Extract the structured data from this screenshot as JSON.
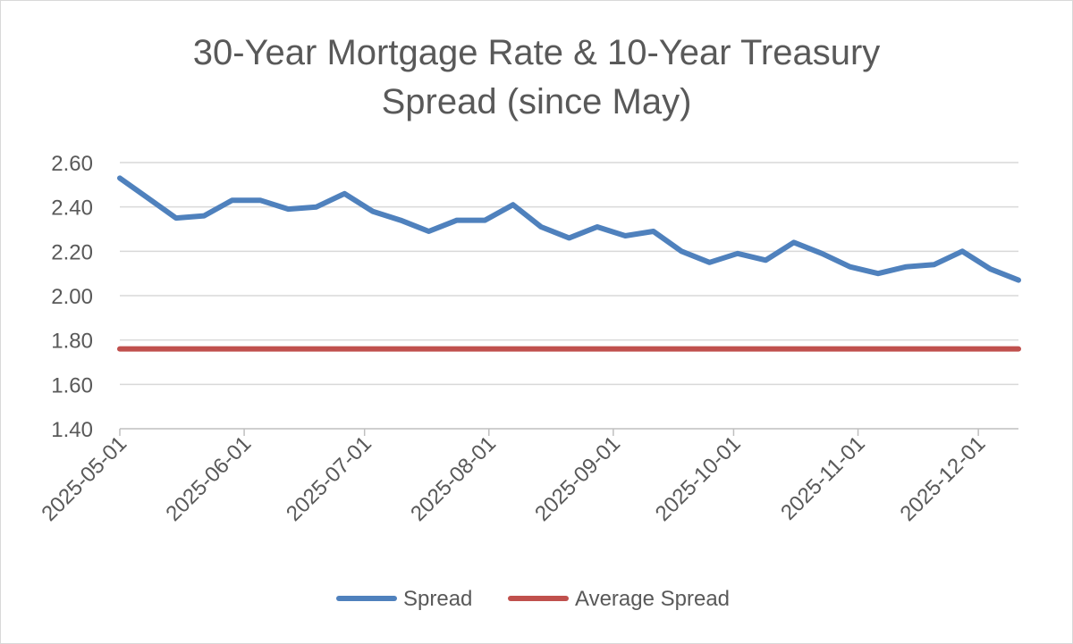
{
  "chart_data": {
    "type": "line",
    "title": "30-Year Mortgage Rate & 10-Year Treasury Spread (since May)",
    "title_lines": [
      "30-Year Mortgage Rate & 10-Year Treasury",
      "Spread (since May)"
    ],
    "xlabel": "",
    "ylabel": "",
    "ylim": [
      1.4,
      2.6
    ],
    "y_ticks": [
      "1.40",
      "1.60",
      "1.80",
      "2.00",
      "2.20",
      "2.40",
      "2.60"
    ],
    "x_ticks": [
      "2025-05-01",
      "2025-06-01",
      "2025-07-01",
      "2025-08-01",
      "2025-09-01",
      "2025-10-01",
      "2025-11-01",
      "2025-12-01"
    ],
    "grid": true,
    "legend_position": "bottom",
    "x": [
      "2025-05-01",
      "2025-05-08",
      "2025-05-15",
      "2025-05-22",
      "2025-05-29",
      "2025-06-05",
      "2025-06-12",
      "2025-06-19",
      "2025-06-26",
      "2025-07-03",
      "2025-07-10",
      "2025-07-17",
      "2025-07-24",
      "2025-07-31",
      "2025-08-07",
      "2025-08-14",
      "2025-08-21",
      "2025-08-28",
      "2025-09-04",
      "2025-09-11",
      "2025-09-18",
      "2025-09-25",
      "2025-10-02",
      "2025-10-09",
      "2025-10-16",
      "2025-10-23",
      "2025-10-30",
      "2025-11-06",
      "2025-11-13",
      "2025-11-20",
      "2025-11-27",
      "2025-12-04",
      "2025-12-11"
    ],
    "series": [
      {
        "name": "Spread",
        "color": "#4f81bd",
        "values": [
          2.53,
          2.44,
          2.35,
          2.36,
          2.43,
          2.43,
          2.39,
          2.4,
          2.46,
          2.38,
          2.34,
          2.29,
          2.34,
          2.34,
          2.41,
          2.31,
          2.26,
          2.31,
          2.27,
          2.29,
          2.2,
          2.15,
          2.19,
          2.16,
          2.24,
          2.19,
          2.13,
          2.1,
          2.13,
          2.14,
          2.2,
          2.12,
          2.07
        ]
      },
      {
        "name": "Average Spread",
        "color": "#c0504d",
        "values": [
          1.76,
          1.76,
          1.76,
          1.76,
          1.76,
          1.76,
          1.76,
          1.76,
          1.76,
          1.76,
          1.76,
          1.76,
          1.76,
          1.76,
          1.76,
          1.76,
          1.76,
          1.76,
          1.76,
          1.76,
          1.76,
          1.76,
          1.76,
          1.76,
          1.76,
          1.76,
          1.76,
          1.76,
          1.76,
          1.76,
          1.76,
          1.76,
          1.76
        ]
      }
    ]
  },
  "colors": {
    "gridline": "#d9d9d9",
    "axis": "#bfbfbf",
    "text": "#595959"
  }
}
